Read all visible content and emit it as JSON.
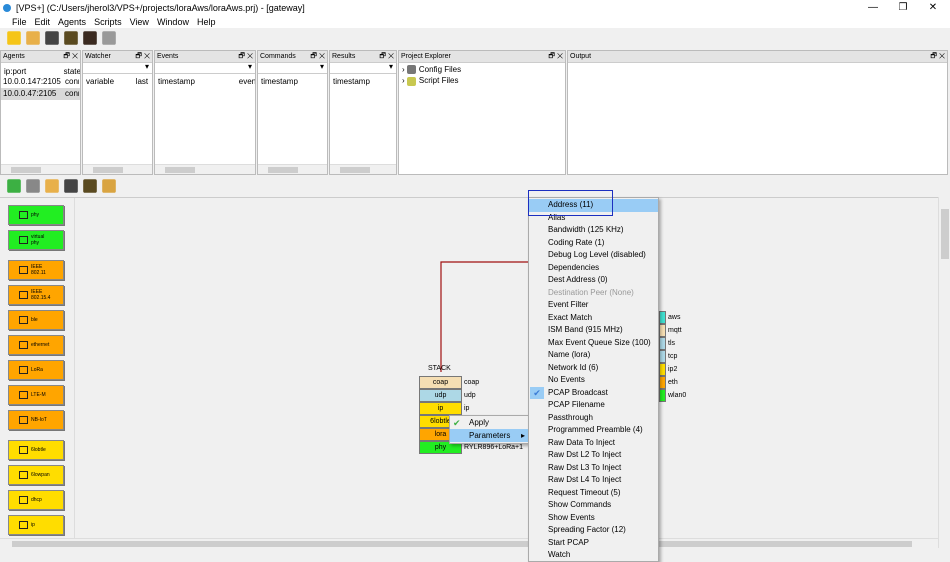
{
  "window": {
    "title": "[VPS+] (C:/Users/jherol3/VPS+/projects/loraAws/loraAws.prj) - [gateway]",
    "minimize": "—",
    "maximize": "❐",
    "close": "✕"
  },
  "menubar": [
    "File",
    "Edit",
    "Agents",
    "Scripts",
    "View",
    "Window",
    "Help"
  ],
  "toolbar": [
    "new-project-icon",
    "open-folder-icon",
    "save-icon",
    "save-as-icon",
    "binoculars-icon",
    "add-database-icon"
  ],
  "panels": {
    "agents": {
      "title": "Agents",
      "columns": [
        "ip:port",
        "state"
      ],
      "rows": [
        [
          "10.0.0.147:2105",
          "conn"
        ],
        [
          "10.0.0.47:2105",
          "conn"
        ]
      ]
    },
    "watcher": {
      "title": "Watcher",
      "columns": [
        "variable",
        "last"
      ]
    },
    "events": {
      "title": "Events",
      "columns": [
        "timestamp",
        "event"
      ]
    },
    "commands": {
      "title": "Commands",
      "columns": [
        "timestamp"
      ]
    },
    "results": {
      "title": "Results",
      "columns": [
        "timestamp"
      ]
    },
    "project_explorer": {
      "title": "Project Explorer",
      "items": [
        "Config Files",
        "Script Files"
      ]
    },
    "output": {
      "title": "Output"
    },
    "controls": "🗗 ✕"
  },
  "toolbar2": [
    "apply-check-icon",
    "cancel-x-icon",
    "open-folder-icon",
    "save-icon",
    "save-as-icon",
    "broom-icon"
  ],
  "palette": [
    {
      "label": "phy",
      "color": "#22ee22"
    },
    {
      "label": "virtual phy",
      "color": "#22ee22"
    },
    {
      "label": "IEEE 802.11",
      "color": "#ffa500"
    },
    {
      "label": "IEEE 802.15.4",
      "color": "#ffa500"
    },
    {
      "label": "ble",
      "color": "#ffa500"
    },
    {
      "label": "ethernet",
      "color": "#ffa500"
    },
    {
      "label": "LoRa",
      "color": "#ffa500"
    },
    {
      "label": "LTE-M",
      "color": "#ffa500"
    },
    {
      "label": "NB-IoT",
      "color": "#ffa500"
    },
    {
      "label": "6lobtle",
      "color": "#ffdd00"
    },
    {
      "label": "6lowpan",
      "color": "#ffdd00"
    },
    {
      "label": "dhcp",
      "color": "#ffdd00"
    },
    {
      "label": "ip",
      "color": "#ffdd00"
    }
  ],
  "stack": {
    "title": "STACK",
    "layers": [
      {
        "name": "coap",
        "label": "coap",
        "color": "#f5deb3"
      },
      {
        "name": "udp",
        "label": "udp",
        "color": "#add8e6"
      },
      {
        "name": "ip",
        "label": "ip",
        "color": "#ffdd00"
      },
      {
        "name": "6lobtle",
        "label": "",
        "color": "#ffdd00"
      },
      {
        "name": "lora",
        "label": "",
        "color": "#ffa500"
      },
      {
        "name": "phy",
        "label": "RYLR896+LoRa+1",
        "color": "#22ee22"
      }
    ]
  },
  "stack2": [
    {
      "label": "aws",
      "color": "#40e0d0"
    },
    {
      "label": "mqtt",
      "color": "#f5deb3"
    },
    {
      "label": "tls",
      "color": "#add8e6"
    },
    {
      "label": "tcp",
      "color": "#add8e6"
    },
    {
      "label": "ip2",
      "color": "#ffdd00"
    },
    {
      "label": "eth",
      "color": "#ffa500"
    },
    {
      "label": "wlan0",
      "color": "#22ee22"
    }
  ],
  "context_menu": {
    "items": [
      "Apply",
      "Parameters"
    ],
    "submenu_arrow": "▸"
  },
  "parameters_menu": [
    {
      "label": "Address (11)",
      "highlighted": true
    },
    {
      "label": "Alias"
    },
    {
      "label": "Bandwidth (125 KHz)"
    },
    {
      "label": "Coding Rate (1)"
    },
    {
      "label": "Debug Log Level (disabled)"
    },
    {
      "label": "Dependencies"
    },
    {
      "label": "Dest Address (0)"
    },
    {
      "label": "Destination Peer (None)",
      "disabled": true
    },
    {
      "label": "Event Filter"
    },
    {
      "label": "Exact Match"
    },
    {
      "label": "ISM Band (915 MHz)"
    },
    {
      "label": "Max Event Queue Size (100)"
    },
    {
      "label": "Name (lora)"
    },
    {
      "label": "Network Id (6)"
    },
    {
      "label": "No Events"
    },
    {
      "label": "PCAP Broadcast",
      "checked": true
    },
    {
      "label": "PCAP Filename"
    },
    {
      "label": "Passthrough"
    },
    {
      "label": "Programmed Preamble (4)"
    },
    {
      "label": "Raw Data To Inject"
    },
    {
      "label": "Raw Dst L2 To Inject"
    },
    {
      "label": "Raw Dst L3 To Inject"
    },
    {
      "label": "Raw Dst L4 To Inject"
    },
    {
      "label": "Request Timeout (5)"
    },
    {
      "label": "Show Commands"
    },
    {
      "label": "Show Events"
    },
    {
      "label": "Spreading Factor (12)"
    },
    {
      "label": "Start PCAP"
    },
    {
      "label": "Watch"
    }
  ],
  "colors": {
    "connection_line": "#a01010",
    "focus_rect": "#1c2fc0",
    "menu_highlight": "#99ccf5"
  }
}
